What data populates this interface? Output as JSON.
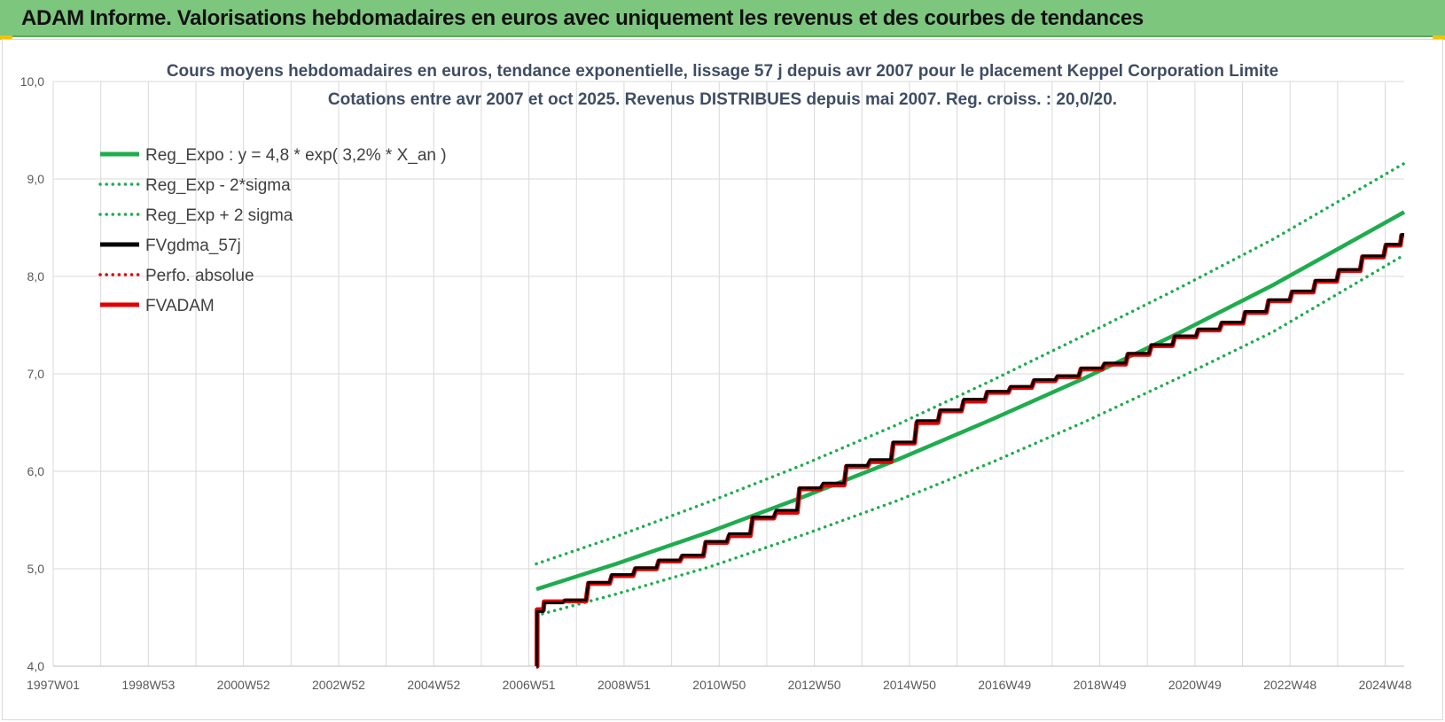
{
  "banner": {
    "title": "ADAM Informe. Valorisations hebdomadaires en euros avec uniquement les revenus et des courbes de tendances"
  },
  "colors": {
    "banner_bg": "#7dc67e",
    "green": "#1fac4f",
    "black": "#000000",
    "red": "#e00000",
    "grid": "#d9d9d9"
  },
  "chart_data": {
    "type": "line",
    "title_lines": [
      "Cours moyens hebdomadaires en euros, tendance exponentielle, lissage 57 j depuis avr 2007 pour le placement Keppel Corporation Limite",
      "Cotations entre avr 2007 et oct 2025.  Revenus DISTRIBUES depuis mai 2007. Reg. croiss. : 20,0/20."
    ],
    "x_tick_labels": [
      "1997W01",
      "1998W53",
      "2000W52",
      "2002W52",
      "2004W52",
      "2006W51",
      "2008W51",
      "2010W50",
      "2012W50",
      "2014W50",
      "2016W49",
      "2018W49",
      "2020W49",
      "2022W48",
      "2024W48"
    ],
    "x_range": [
      1997.0,
      2025.8
    ],
    "y_tick_labels": [
      "4,0",
      "5,0",
      "6,0",
      "7,0",
      "8,0",
      "9,0",
      "10,0"
    ],
    "ylim": [
      4.0,
      10.0
    ],
    "grid": true,
    "legend_position": "top-left",
    "legend": [
      {
        "name": "Reg_Expo : y = 4,8 * exp( 3,2% *  X_an )",
        "color": "#1fac4f",
        "style": "solid"
      },
      {
        "name": "Reg_Exp - 2*sigma",
        "color": "#1fac4f",
        "style": "dotted"
      },
      {
        "name": "Reg_Exp + 2 sigma",
        "color": "#1fac4f",
        "style": "dotted"
      },
      {
        "name": "FVgdma_57j",
        "color": "#000000",
        "style": "solid"
      },
      {
        "name": "Perfo. absolue",
        "color": "#e00000",
        "style": "dotted"
      },
      {
        "name": "FVADAM",
        "color": "#e00000",
        "style": "solid"
      }
    ],
    "series": [
      {
        "name": "Reg_Expo : y = 4,8 * exp( 3,2% *  X_an )",
        "x": [
          2007.3,
          2009.0,
          2011.0,
          2013.0,
          2015.0,
          2017.0,
          2019.0,
          2021.0,
          2023.0,
          2025.8
        ],
        "y": [
          4.79,
          5.05,
          5.38,
          5.74,
          6.12,
          6.53,
          6.96,
          7.42,
          7.91,
          8.66
        ]
      },
      {
        "name": "Reg_Exp - 2*sigma",
        "x": [
          2007.3,
          2009.0,
          2011.0,
          2013.0,
          2015.0,
          2017.0,
          2019.0,
          2021.0,
          2023.0,
          2025.8
        ],
        "y": [
          4.52,
          4.74,
          5.02,
          5.35,
          5.7,
          6.09,
          6.51,
          6.96,
          7.43,
          8.22
        ]
      },
      {
        "name": "Reg_Exp + 2 sigma",
        "x": [
          2007.3,
          2009.0,
          2011.0,
          2013.0,
          2015.0,
          2017.0,
          2019.0,
          2021.0,
          2023.0,
          2025.8
        ],
        "y": [
          5.05,
          5.33,
          5.69,
          6.07,
          6.48,
          6.93,
          7.4,
          7.88,
          8.38,
          9.16
        ]
      },
      {
        "name": "FVADAM",
        "x": [
          2007.3,
          2007.32,
          2007.5,
          2008.0,
          2008.5,
          2009.0,
          2009.5,
          2010.0,
          2010.5,
          2011.0,
          2011.5,
          2012.0,
          2012.5,
          2013.0,
          2013.5,
          2014.0,
          2014.5,
          2015.0,
          2015.5,
          2016.0,
          2016.5,
          2017.0,
          2017.5,
          2018.0,
          2018.5,
          2019.0,
          2019.5,
          2020.0,
          2020.5,
          2021.0,
          2021.5,
          2022.0,
          2022.5,
          2023.0,
          2023.5,
          2024.0,
          2024.5,
          2025.0,
          2025.5,
          2025.8
        ],
        "y": [
          4.0,
          4.58,
          4.66,
          4.67,
          4.85,
          4.93,
          5.0,
          5.08,
          5.13,
          5.27,
          5.34,
          5.52,
          5.58,
          5.82,
          5.86,
          6.05,
          6.1,
          6.29,
          6.5,
          6.62,
          6.72,
          6.81,
          6.86,
          6.93,
          6.97,
          7.05,
          7.1,
          7.2,
          7.29,
          7.38,
          7.45,
          7.52,
          7.63,
          7.75,
          7.84,
          7.95,
          8.06,
          8.2,
          8.32,
          8.42
        ]
      },
      {
        "name": "FVgdma_57j",
        "x": [
          2007.3,
          2007.32,
          2007.5,
          2008.0,
          2008.5,
          2009.0,
          2009.5,
          2010.0,
          2010.5,
          2011.0,
          2011.5,
          2012.0,
          2012.5,
          2013.0,
          2013.5,
          2014.0,
          2014.5,
          2015.0,
          2015.5,
          2016.0,
          2016.5,
          2017.0,
          2017.5,
          2018.0,
          2018.5,
          2019.0,
          2019.5,
          2020.0,
          2020.5,
          2021.0,
          2021.5,
          2022.0,
          2022.5,
          2023.0,
          2023.5,
          2024.0,
          2024.5,
          2025.0,
          2025.5,
          2025.8
        ],
        "y": [
          4.0,
          4.56,
          4.65,
          4.68,
          4.86,
          4.94,
          5.01,
          5.09,
          5.14,
          5.28,
          5.36,
          5.53,
          5.6,
          5.83,
          5.88,
          6.06,
          6.12,
          6.3,
          6.52,
          6.63,
          6.74,
          6.82,
          6.87,
          6.94,
          6.98,
          7.06,
          7.11,
          7.21,
          7.3,
          7.39,
          7.46,
          7.53,
          7.64,
          7.76,
          7.85,
          7.96,
          8.07,
          8.21,
          8.33,
          8.43
        ]
      }
    ]
  }
}
